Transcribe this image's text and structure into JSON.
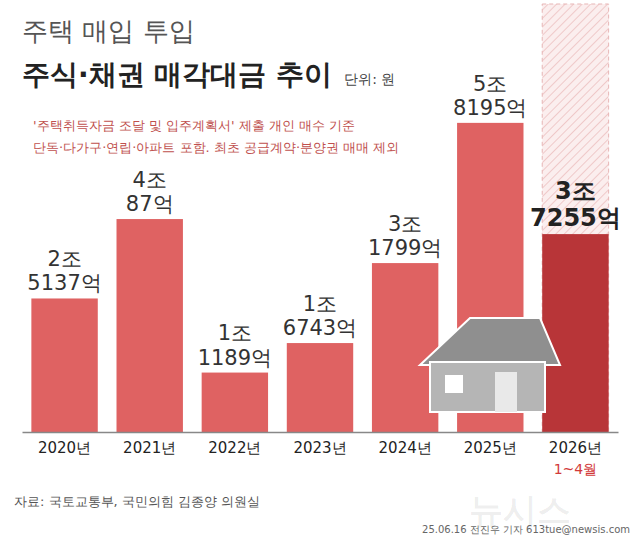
{
  "chart_data": {
    "type": "bar",
    "supertitle": "주택 매입 투입",
    "title": "주식·채권 매각대금 추이",
    "unit": "단위: 원",
    "subtitle": [
      "'주택취득자금 조달 및 입주계획서' 제출 개인 매수 기준",
      "단독·다가구·연립·아파트 포함. 최초 공급계약·분양권 매매 제외"
    ],
    "categories": [
      "2020년",
      "2021년",
      "2022년",
      "2023년",
      "2024년",
      "2025년",
      "2026년"
    ],
    "values": [
      25137,
      40087,
      11189,
      16743,
      31799,
      58195,
      37255
    ],
    "value_labels": [
      "2조 5137억",
      "4조 87억",
      "1조 1189억",
      "1조 6743억",
      "3조 1799억",
      "5조 8195억",
      "3조 7255억"
    ],
    "colors": [
      "#df6262",
      "#df6262",
      "#df6262",
      "#df6262",
      "#df6262",
      "#df6262",
      "#b83538"
    ],
    "ylim": [
      0,
      62500
    ],
    "data_labels": true,
    "tick_labels": "x",
    "grid": false,
    "annotations": [
      {
        "category": "2026년",
        "text": "1~4월"
      }
    ],
    "source": "자료: 국토교통부, 국민의힘 김종양 의원실",
    "credit": "25.06.16 전진우 기자 613tue@newsis.com",
    "watermark": "뉴시스"
  }
}
